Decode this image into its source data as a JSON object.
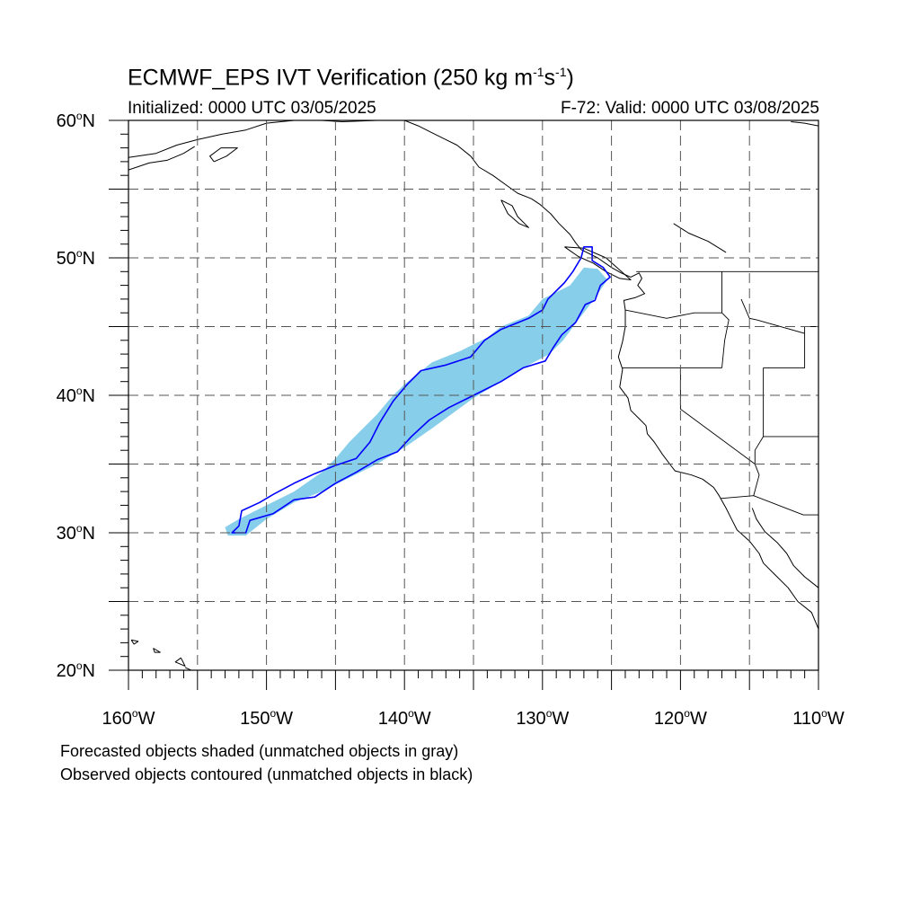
{
  "title": {
    "prefix": "ECMWF_EPS IVT Verification (250 kg m",
    "exp1": "-1",
    "mid": "s",
    "exp2": "-1",
    "suffix": ")"
  },
  "initialized": "Initialized: 0000 UTC 03/05/2025",
  "valid": "F-72: Valid: 0000 UTC 03/08/2025",
  "captions": [
    "Forecasted objects shaded (unmatched objects in gray)",
    "Observed objects contoured (unmatched objects in black)"
  ],
  "map": {
    "lon_range": [
      -160,
      -110
    ],
    "lat_range": [
      20,
      60
    ],
    "lon_labels": [
      {
        "lon": -160,
        "text": "160",
        "hemi": "W"
      },
      {
        "lon": -150,
        "text": "150",
        "hemi": "W"
      },
      {
        "lon": -140,
        "text": "140",
        "hemi": "W"
      },
      {
        "lon": -130,
        "text": "130",
        "hemi": "W"
      },
      {
        "lon": -120,
        "text": "120",
        "hemi": "W"
      },
      {
        "lon": -110,
        "text": "110",
        "hemi": "W"
      }
    ],
    "lat_labels": [
      {
        "lat": 20,
        "text": "20",
        "hemi": "N"
      },
      {
        "lat": 30,
        "text": "30",
        "hemi": "N"
      },
      {
        "lat": 40,
        "text": "40",
        "hemi": "N"
      },
      {
        "lat": 50,
        "text": "50",
        "hemi": "N"
      },
      {
        "lat": 60,
        "text": "60",
        "hemi": "N"
      }
    ],
    "grid_lons": [
      -155,
      -150,
      -145,
      -140,
      -135,
      -130,
      -125,
      -120,
      -115
    ],
    "grid_lats": [
      25,
      30,
      35,
      40,
      45,
      50,
      55
    ],
    "colors": {
      "forecast_fill": "#87ceeb",
      "observed_contour": "#0000ff",
      "coastline": "#000000",
      "grid": "#555555"
    },
    "forecast_object": [
      [
        -153.0,
        30.4
      ],
      [
        -152.0,
        31.0
      ],
      [
        -150.0,
        32.0
      ],
      [
        -148.0,
        33.0
      ],
      [
        -146.0,
        34.4
      ],
      [
        -145.0,
        35.4
      ],
      [
        -144.0,
        36.6
      ],
      [
        -143.0,
        37.6
      ],
      [
        -142.0,
        38.6
      ],
      [
        -141.0,
        39.8
      ],
      [
        -140.0,
        40.8
      ],
      [
        -139.0,
        41.6
      ],
      [
        -138.0,
        42.4
      ],
      [
        -136.0,
        43.2
      ],
      [
        -134.0,
        44.2
      ],
      [
        -133.0,
        45.0
      ],
      [
        -131.0,
        45.8
      ],
      [
        -130.0,
        47.0
      ],
      [
        -128.0,
        48.0
      ],
      [
        -127.0,
        49.3
      ],
      [
        -126.0,
        49.2
      ],
      [
        -125.3,
        48.4
      ],
      [
        -126.4,
        46.8
      ],
      [
        -127.4,
        45.5
      ],
      [
        -128.5,
        44.0
      ],
      [
        -129.5,
        43.0
      ],
      [
        -131.0,
        42.2
      ],
      [
        -133.0,
        41.0
      ],
      [
        -135.0,
        39.8
      ],
      [
        -136.5,
        38.7
      ],
      [
        -138.0,
        37.6
      ],
      [
        -140.0,
        36.2
      ],
      [
        -142.0,
        35.0
      ],
      [
        -144.0,
        34.0
      ],
      [
        -146.0,
        33.0
      ],
      [
        -148.0,
        32.2
      ],
      [
        -150.0,
        31.0
      ],
      [
        -151.5,
        29.8
      ],
      [
        -152.8,
        29.8
      ]
    ],
    "observed_object": [
      [
        -152.0,
        30.5
      ],
      [
        -151.8,
        31.6
      ],
      [
        -150.5,
        32.2
      ],
      [
        -149.5,
        32.8
      ],
      [
        -148.0,
        33.6
      ],
      [
        -146.5,
        34.3
      ],
      [
        -145.0,
        34.9
      ],
      [
        -143.5,
        35.4
      ],
      [
        -142.5,
        36.6
      ],
      [
        -141.8,
        38.0
      ],
      [
        -140.8,
        39.6
      ],
      [
        -139.8,
        40.8
      ],
      [
        -138.8,
        41.8
      ],
      [
        -137.0,
        42.2
      ],
      [
        -135.2,
        42.8
      ],
      [
        -134.2,
        44.0
      ],
      [
        -133.0,
        44.8
      ],
      [
        -131.0,
        45.6
      ],
      [
        -130.0,
        46.2
      ],
      [
        -129.6,
        47.0
      ],
      [
        -128.4,
        48.2
      ],
      [
        -127.8,
        49.0
      ],
      [
        -127.2,
        50.0
      ],
      [
        -127.0,
        50.8
      ],
      [
        -126.4,
        50.8
      ],
      [
        -126.4,
        49.8
      ],
      [
        -125.6,
        49.3
      ],
      [
        -125.1,
        48.6
      ],
      [
        -125.8,
        48.0
      ],
      [
        -126.2,
        46.9
      ],
      [
        -126.9,
        46.6
      ],
      [
        -127.6,
        45.3
      ],
      [
        -128.6,
        44.4
      ],
      [
        -129.2,
        43.5
      ],
      [
        -129.8,
        42.5
      ],
      [
        -131.4,
        42.0
      ],
      [
        -133.0,
        41.0
      ],
      [
        -134.0,
        40.5
      ],
      [
        -135.4,
        39.8
      ],
      [
        -136.8,
        39.1
      ],
      [
        -138.2,
        38.2
      ],
      [
        -139.5,
        37.0
      ],
      [
        -140.5,
        35.9
      ],
      [
        -142.0,
        35.3
      ],
      [
        -143.5,
        34.4
      ],
      [
        -145.0,
        33.6
      ],
      [
        -146.5,
        32.6
      ],
      [
        -148.0,
        32.4
      ],
      [
        -149.5,
        31.4
      ],
      [
        -151.2,
        30.9
      ],
      [
        -151.5,
        30.0
      ],
      [
        -152.5,
        30.0
      ]
    ],
    "coastlines": [
      [
        [
          -160.0,
          57.3
        ],
        [
          -158.0,
          57.6
        ],
        [
          -156.5,
          58.2
        ],
        [
          -155.0,
          58.6
        ],
        [
          -153.2,
          59.0
        ],
        [
          -151.5,
          59.3
        ],
        [
          -150.0,
          59.8
        ],
        [
          -148.0,
          60.0
        ]
      ],
      [
        [
          -160.0,
          56.4
        ],
        [
          -158.5,
          56.9
        ],
        [
          -157.2,
          57.1
        ],
        [
          -156.0,
          57.6
        ],
        [
          -155.2,
          58.1
        ]
      ],
      [
        [
          -153.8,
          57.0
        ],
        [
          -152.9,
          57.4
        ],
        [
          -152.1,
          58.0
        ],
        [
          -153.3,
          58.0
        ],
        [
          -154.1,
          57.4
        ],
        [
          -153.8,
          57.0
        ]
      ],
      [
        [
          -146.0,
          60.0
        ],
        [
          -144.5,
          59.9
        ],
        [
          -142.0,
          60.0
        ]
      ],
      [
        [
          -140.0,
          60.0
        ],
        [
          -139.0,
          59.6
        ],
        [
          -138.0,
          59.1
        ],
        [
          -137.0,
          58.6
        ],
        [
          -136.2,
          58.2
        ],
        [
          -135.2,
          57.4
        ],
        [
          -134.6,
          56.6
        ],
        [
          -133.6,
          56.0
        ],
        [
          -132.5,
          55.2
        ],
        [
          -131.8,
          54.7
        ],
        [
          -130.8,
          54.3
        ],
        [
          -130.2,
          53.9
        ],
        [
          -129.4,
          53.2
        ],
        [
          -128.8,
          52.5
        ],
        [
          -128.0,
          51.7
        ],
        [
          -127.6,
          51.1
        ],
        [
          -127.2,
          50.6
        ],
        [
          -126.0,
          50.0
        ],
        [
          -125.0,
          49.3
        ],
        [
          -124.3,
          48.9
        ],
        [
          -123.6,
          48.6
        ],
        [
          -123.0,
          48.9
        ],
        [
          -122.8,
          48.5
        ],
        [
          -123.1,
          48.0
        ],
        [
          -122.6,
          47.4
        ],
        [
          -123.3,
          47.1
        ],
        [
          -124.1,
          46.9
        ],
        [
          -124.0,
          46.2
        ],
        [
          -124.0,
          45.0
        ],
        [
          -124.2,
          43.9
        ],
        [
          -124.5,
          42.8
        ],
        [
          -124.2,
          41.9
        ],
        [
          -124.4,
          40.6
        ],
        [
          -123.8,
          39.8
        ],
        [
          -123.6,
          38.9
        ],
        [
          -122.9,
          38.2
        ],
        [
          -122.5,
          37.8
        ],
        [
          -122.4,
          37.2
        ],
        [
          -121.9,
          36.6
        ],
        [
          -121.3,
          35.7
        ],
        [
          -120.7,
          34.9
        ],
        [
          -120.4,
          34.5
        ],
        [
          -119.2,
          34.2
        ],
        [
          -118.4,
          33.9
        ],
        [
          -117.6,
          33.3
        ],
        [
          -117.2,
          32.7
        ],
        [
          -116.7,
          31.8
        ],
        [
          -116.3,
          31.0
        ],
        [
          -115.9,
          30.2
        ],
        [
          -115.0,
          29.4
        ],
        [
          -114.3,
          28.5
        ],
        [
          -114.0,
          27.8
        ],
        [
          -113.2,
          27.0
        ],
        [
          -112.2,
          26.0
        ],
        [
          -111.5,
          25.0
        ],
        [
          -110.5,
          24.2
        ],
        [
          -110.0,
          23.0
        ]
      ],
      [
        [
          -114.8,
          31.8
        ],
        [
          -114.5,
          31.0
        ],
        [
          -113.9,
          30.1
        ],
        [
          -113.0,
          29.3
        ],
        [
          -112.3,
          28.5
        ],
        [
          -111.8,
          27.6
        ],
        [
          -111.0,
          26.8
        ],
        [
          -110.0,
          26.0
        ]
      ],
      [
        [
          -128.4,
          50.8
        ],
        [
          -127.4,
          50.1
        ],
        [
          -126.3,
          49.6
        ],
        [
          -125.4,
          49.0
        ],
        [
          -124.4,
          48.5
        ],
        [
          -123.6,
          48.4
        ],
        [
          -124.5,
          49.2
        ],
        [
          -125.4,
          50.0
        ],
        [
          -127.0,
          50.7
        ],
        [
          -128.4,
          50.8
        ]
      ],
      [
        [
          -133.0,
          54.2
        ],
        [
          -132.2,
          53.8
        ],
        [
          -131.8,
          53.0
        ],
        [
          -131.0,
          52.2
        ],
        [
          -131.7,
          52.5
        ],
        [
          -132.5,
          53.2
        ],
        [
          -133.0,
          54.2
        ]
      ],
      [
        [
          -110.0,
          59.6
        ],
        [
          -111.0,
          59.8
        ],
        [
          -112.0,
          59.9
        ]
      ],
      [
        [
          -120.5,
          52.5
        ],
        [
          -119.4,
          51.8
        ],
        [
          -118.0,
          51.2
        ],
        [
          -116.7,
          50.4
        ]
      ],
      [
        [
          -156.2,
          20.9
        ],
        [
          -156.6,
          20.6
        ],
        [
          -155.9,
          20.3
        ],
        [
          -156.2,
          20.9
        ]
      ],
      [
        [
          -158.2,
          21.6
        ],
        [
          -157.7,
          21.3
        ],
        [
          -158.1,
          21.3
        ],
        [
          -158.2,
          21.6
        ]
      ],
      [
        [
          -159.8,
          22.2
        ],
        [
          -159.3,
          22.1
        ],
        [
          -159.6,
          21.9
        ],
        [
          -159.8,
          22.2
        ]
      ],
      [
        [
          -155.9,
          20.2
        ],
        [
          -155.0,
          19.8
        ]
      ]
    ],
    "borders": [
      [
        [
          -123.2,
          49.0
        ],
        [
          -110.0,
          49.0
        ]
      ],
      [
        [
          -124.2,
          42.0
        ],
        [
          -120.0,
          42.0
        ],
        [
          -117.0,
          42.0
        ]
      ],
      [
        [
          -120.0,
          42.0
        ],
        [
          -120.0,
          39.0
        ],
        [
          -114.6,
          35.0
        ]
      ],
      [
        [
          -117.0,
          49.0
        ],
        [
          -117.0,
          46.0
        ],
        [
          -116.5,
          45.5
        ],
        [
          -116.8,
          44.0
        ],
        [
          -117.0,
          42.0
        ]
      ],
      [
        [
          -124.0,
          46.2
        ],
        [
          -121.0,
          45.6
        ],
        [
          -119.0,
          46.0
        ],
        [
          -117.0,
          46.0
        ]
      ],
      [
        [
          -114.0,
          42.0
        ],
        [
          -111.0,
          42.0
        ],
        [
          -111.0,
          45.0
        ],
        [
          -110.0,
          45.0
        ]
      ],
      [
        [
          -115.6,
          47.0
        ],
        [
          -115.0,
          45.6
        ],
        [
          -114.5,
          45.5
        ],
        [
          -111.0,
          44.5
        ]
      ],
      [
        [
          -114.0,
          42.0
        ],
        [
          -114.0,
          37.0
        ],
        [
          -114.6,
          36.0
        ],
        [
          -114.6,
          35.0
        ],
        [
          -114.3,
          34.2
        ],
        [
          -114.7,
          32.7
        ]
      ],
      [
        [
          -114.0,
          37.0
        ],
        [
          -110.0,
          37.0
        ]
      ],
      [
        [
          -117.1,
          32.5
        ],
        [
          -114.7,
          32.7
        ],
        [
          -111.1,
          31.3
        ],
        [
          -110.0,
          31.3
        ]
      ]
    ]
  }
}
